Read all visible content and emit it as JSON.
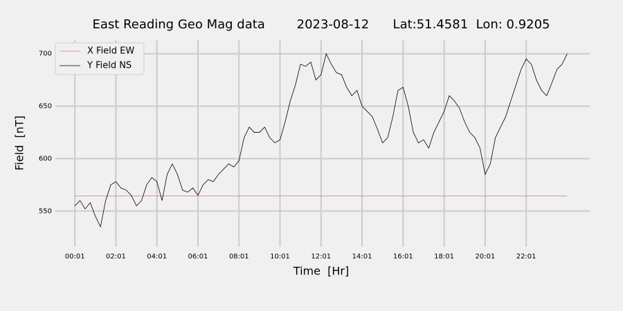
{
  "chart_data": {
    "type": "line",
    "title": "East Reading Geo Mag data        2023-08-12      Lat:51.4581  Lon: 0.9205",
    "x_label": "Time  [Hr]",
    "y_label": "Field  [nT]",
    "series": [
      {
        "name": "X Field EW",
        "color": "#e8706a",
        "x": [
          1,
          1441
        ],
        "values": [
          564.5,
          564.5
        ]
      },
      {
        "name": "Y Field NS",
        "color": "#000000",
        "x": [
          1,
          16,
          31,
          46,
          61,
          76,
          91,
          106,
          121,
          136,
          151,
          166,
          181,
          196,
          211,
          226,
          241,
          256,
          271,
          286,
          301,
          316,
          331,
          346,
          361,
          376,
          391,
          406,
          421,
          436,
          451,
          466,
          481,
          496,
          511,
          526,
          541,
          556,
          571,
          586,
          601,
          616,
          631,
          646,
          661,
          676,
          691,
          706,
          721,
          736,
          751,
          766,
          781,
          796,
          811,
          826,
          841,
          856,
          871,
          886,
          901,
          916,
          931,
          946,
          961,
          976,
          991,
          1006,
          1021,
          1036,
          1051,
          1066,
          1081,
          1096,
          1111,
          1126,
          1141,
          1156,
          1171,
          1186,
          1201,
          1216,
          1231,
          1246,
          1261,
          1276,
          1291,
          1306,
          1321,
          1336,
          1351,
          1366,
          1381,
          1396,
          1411,
          1426,
          1441
        ],
        "values": [
          555,
          560,
          552,
          558,
          545,
          535,
          560,
          575,
          578,
          572,
          570,
          565,
          555,
          560,
          575,
          582,
          578,
          560,
          585,
          595,
          585,
          570,
          568,
          572,
          565,
          575,
          580,
          578,
          585,
          590,
          595,
          592,
          598,
          620,
          630,
          625,
          625,
          630,
          620,
          615,
          618,
          635,
          655,
          670,
          690,
          688,
          692,
          675,
          680,
          700,
          690,
          682,
          680,
          668,
          660,
          665,
          650,
          645,
          640,
          628,
          615,
          620,
          640,
          665,
          668,
          650,
          625,
          615,
          618,
          610,
          625,
          635,
          645,
          660,
          655,
          648,
          635,
          625,
          620,
          610,
          585,
          595,
          620,
          630,
          640,
          655,
          670,
          685,
          695,
          690,
          675,
          665,
          660,
          672,
          685,
          690,
          700
        ]
      }
    ],
    "xlim": [
      -56,
      1507
    ],
    "xticks": [
      {
        "value": 1,
        "label": "00:01"
      },
      {
        "value": 121,
        "label": "02:01"
      },
      {
        "value": 241,
        "label": "04:01"
      },
      {
        "value": 361,
        "label": "06:01"
      },
      {
        "value": 481,
        "label": "08:01"
      },
      {
        "value": 601,
        "label": "10:01"
      },
      {
        "value": 721,
        "label": "12:01"
      },
      {
        "value": 841,
        "label": "14:01"
      },
      {
        "value": 961,
        "label": "16:01"
      },
      {
        "value": 1081,
        "label": "18:01"
      },
      {
        "value": 1201,
        "label": "20:01"
      },
      {
        "value": 1321,
        "label": "22:01"
      }
    ],
    "ylim": [
      516,
      713
    ],
    "yticks": [
      550,
      600,
      650,
      700
    ],
    "grid": true,
    "legend": "upper left"
  }
}
